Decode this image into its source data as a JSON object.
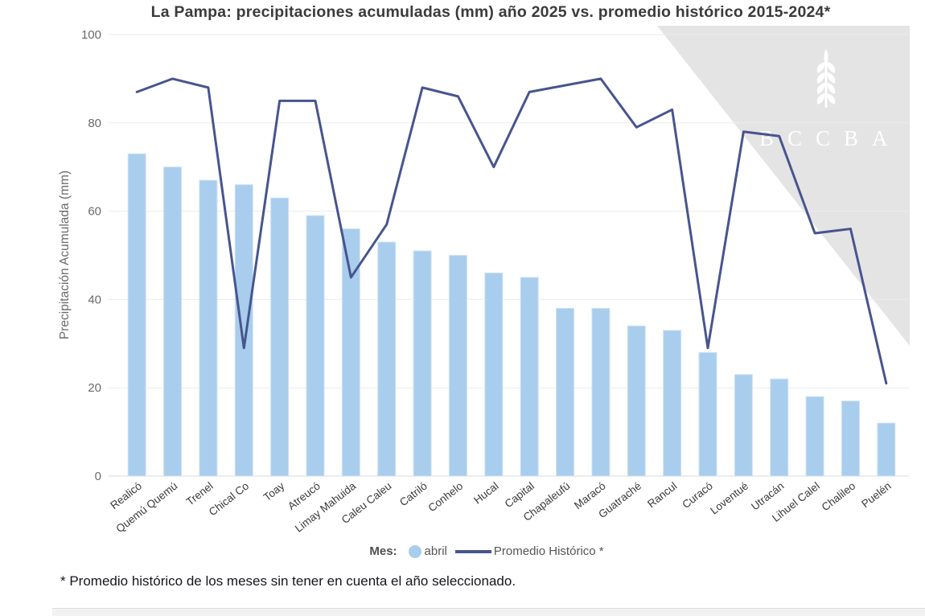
{
  "title": "La Pampa: precipitaciones acumuladas (mm) año 2025 vs. promedio histórico 2015-2024*",
  "footnote": "* Promedio histórico de los meses sin tener en cuenta el año seleccionado.",
  "legend": {
    "prefix": "Mes:",
    "series1": "abril",
    "series2": "Promedio Histórico *"
  },
  "watermark": {
    "text": "BCCBA",
    "icon": "wheat-icon"
  },
  "colors": {
    "bar": "#a9cded",
    "bar_border": "#cfe2f5",
    "line": "#47558e",
    "grid": "#ebebeb",
    "axis": "#d9d9d9",
    "title": "#3b3b3b",
    "tick_label": "#6a6a6a",
    "x_label": "#3a3a3a",
    "watermark_bg": "#e5e4e5",
    "watermark_fg": "#ffffff",
    "footnote": "#15151d"
  },
  "chart_data": {
    "type": "bar+line",
    "title": "La Pampa: precipitaciones acumuladas (mm) año 2025 vs. promedio histórico 2015-2024*",
    "xlabel": "",
    "ylabel": "Precipitación Acumulada (mm)",
    "ylim": [
      0,
      100
    ],
    "yticks": [
      0,
      20,
      40,
      60,
      80,
      100
    ],
    "grid": true,
    "legend_position": "bottom",
    "categories": [
      "Realicó",
      "Quemú Quemú",
      "Trenel",
      "Chical Co",
      "Toay",
      "Atreucó",
      "Limay Mahuida",
      "Caleu Caleu",
      "Catriló",
      "Conhelo",
      "Hucal",
      "Capital",
      "Chapaleufú",
      "Maracó",
      "Guatraché",
      "Rancul",
      "Curacó",
      "Loventué",
      "Utracán",
      "Lihuel Calel",
      "Chalileo",
      "Puelén"
    ],
    "series": [
      {
        "name": "abril",
        "type": "bar",
        "values": [
          73,
          70,
          67,
          66,
          63,
          59,
          56,
          53,
          51,
          50,
          46,
          45,
          38,
          38,
          34,
          33,
          28,
          23,
          22,
          18,
          17,
          12
        ]
      },
      {
        "name": "Promedio Histórico *",
        "type": "line",
        "values": [
          87,
          90,
          88,
          29,
          85,
          85,
          45,
          57,
          88,
          86,
          70,
          87,
          88.5,
          90,
          79,
          83,
          29,
          78,
          77,
          55,
          56,
          21
        ]
      }
    ]
  }
}
